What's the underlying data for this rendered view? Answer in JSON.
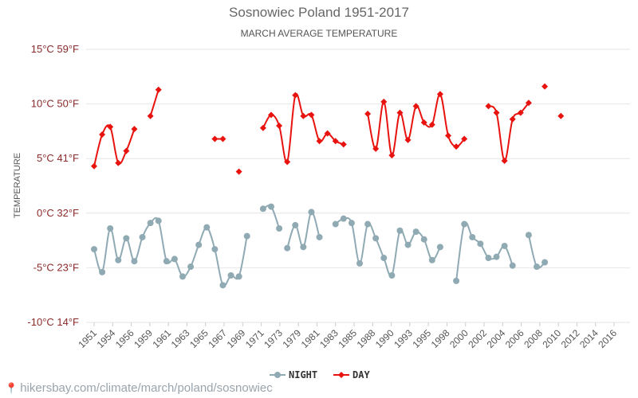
{
  "chart_data": {
    "type": "line",
    "title": "Sosnowiec Poland 1951-2017",
    "subtitle": "MARCH AVERAGE TEMPERATURE",
    "ylabel": "TEMPERATURE",
    "ylim": [
      -10,
      15
    ],
    "y_ticks": [
      {
        "value": 15,
        "label": "15°C 59°F"
      },
      {
        "value": 10,
        "label": "10°C 50°F"
      },
      {
        "value": 5,
        "label": "5°C 41°F"
      },
      {
        "value": 0,
        "label": "0°C 32°F"
      },
      {
        "value": -5,
        "label": "-5°C 23°F"
      },
      {
        "value": -10,
        "label": "-10°C 14°F"
      }
    ],
    "x_range": [
      1951,
      2017
    ],
    "x_tick_labels": [
      "1951",
      "1954",
      "1956",
      "1959",
      "1961",
      "1963",
      "1965",
      "1967",
      "1969",
      "1971",
      "1973",
      "1979",
      "1981",
      "1983",
      "1985",
      "1988",
      "1990",
      "1993",
      "1995",
      "1998",
      "2000",
      "2002",
      "2004",
      "2006",
      "2008",
      "2010",
      "2012",
      "2014",
      "2016"
    ],
    "legend_position": "bottom-center",
    "grid": true,
    "series": [
      {
        "name": "NIGHT",
        "color": "#90aab4",
        "marker": "circle",
        "points": [
          [
            1951,
            -3.3
          ],
          [
            1952,
            -5.4
          ],
          [
            1953,
            -1.4
          ],
          [
            1954,
            -4.3
          ],
          [
            1955,
            -2.3
          ],
          [
            1956,
            -4.4
          ],
          [
            1957,
            -2.2
          ],
          [
            1958,
            -0.9
          ],
          [
            1959,
            -0.7
          ],
          [
            1960,
            -4.4
          ],
          [
            1961,
            -4.2
          ],
          [
            1962,
            -5.8
          ],
          [
            1963,
            -4.9
          ],
          [
            1964,
            -2.9
          ],
          [
            1965,
            -1.3
          ],
          [
            1966,
            -3.3
          ],
          [
            1967,
            -6.6
          ],
          [
            1968,
            -5.7
          ],
          [
            1969,
            -5.8
          ],
          [
            1970,
            -2.1
          ],
          null,
          [
            1972,
            0.4
          ],
          [
            1973,
            0.6
          ],
          [
            1974,
            -1.4
          ],
          null,
          [
            1975,
            -3.2
          ],
          [
            1976,
            -1.1
          ],
          [
            1977,
            -3.1
          ],
          [
            1978,
            0.1
          ],
          [
            1979,
            -2.2
          ],
          null,
          [
            1981,
            -1.0
          ],
          [
            1982,
            -0.5
          ],
          [
            1983,
            -0.9
          ],
          [
            1984,
            -4.6
          ],
          [
            1985,
            -1.0
          ],
          [
            1986,
            -2.3
          ],
          [
            1987,
            -4.1
          ],
          [
            1988,
            -5.7
          ],
          [
            1989,
            -1.6
          ],
          [
            1990,
            -2.9
          ],
          [
            1991,
            -1.7
          ],
          [
            1992,
            -2.4
          ],
          [
            1993,
            -4.3
          ],
          [
            1994,
            -3.1
          ],
          null,
          [
            1996,
            -6.2
          ],
          [
            1997,
            -1.0
          ],
          [
            1998,
            -2.2
          ],
          [
            1999,
            -2.8
          ],
          [
            2000,
            -4.1
          ],
          [
            2001,
            -4.0
          ],
          [
            2002,
            -3.0
          ],
          [
            2003,
            -4.8
          ],
          null,
          [
            2005,
            -2.0
          ],
          [
            2006,
            -4.9
          ],
          [
            2007,
            -4.5
          ]
        ]
      },
      {
        "name": "DAY",
        "color": "#e8130f",
        "marker": "diamond",
        "points": [
          [
            1951,
            4.3
          ],
          [
            1952,
            7.2
          ],
          [
            1953,
            7.9
          ],
          [
            1954,
            4.6
          ],
          [
            1955,
            5.7
          ],
          [
            1956,
            7.7
          ],
          null,
          [
            1958,
            8.9
          ],
          [
            1959,
            11.3
          ],
          null,
          [
            1966,
            6.8
          ],
          [
            1967,
            6.8
          ],
          null,
          [
            1969,
            3.8
          ],
          null,
          [
            1972,
            7.8
          ],
          [
            1973,
            9.0
          ],
          [
            1974,
            8.0
          ],
          [
            1975,
            4.7
          ],
          [
            1976,
            10.8
          ],
          [
            1977,
            8.9
          ],
          [
            1978,
            9.0
          ],
          [
            1979,
            6.6
          ],
          [
            1980,
            7.3
          ],
          [
            1981,
            6.6
          ],
          [
            1982,
            6.3
          ],
          null,
          [
            1985,
            9.1
          ],
          [
            1986,
            5.9
          ],
          [
            1987,
            10.2
          ],
          [
            1988,
            5.3
          ],
          [
            1989,
            9.2
          ],
          [
            1990,
            6.7
          ],
          [
            1991,
            9.8
          ],
          [
            1992,
            8.3
          ],
          [
            1993,
            8.1
          ],
          [
            1994,
            10.9
          ],
          [
            1995,
            7.1
          ],
          [
            1996,
            6.1
          ],
          [
            1997,
            6.8
          ],
          null,
          [
            2000,
            9.8
          ],
          [
            2001,
            9.2
          ],
          [
            2002,
            4.8
          ],
          [
            2003,
            8.6
          ],
          [
            2004,
            9.2
          ],
          [
            2005,
            10.1
          ],
          null,
          [
            2007,
            11.6
          ],
          null,
          [
            2009,
            8.9
          ]
        ]
      }
    ]
  },
  "footer": {
    "pin_icon": "location-pin-icon",
    "url_text": "hikersbay.com/climate/march/poland/sosnowiec"
  }
}
